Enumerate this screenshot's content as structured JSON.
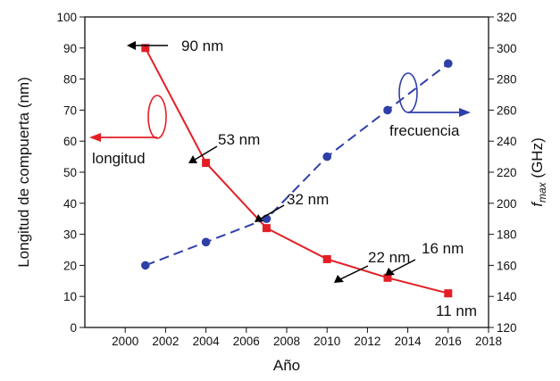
{
  "chart_data": {
    "type": "line",
    "xlabel": "Año",
    "ylabel_left": "Longitud de compuerta (nm)",
    "ylabel_right_main": "f",
    "ylabel_right_sub": "max",
    "ylabel_right_unit": " (GHz)",
    "xlim": [
      1998,
      2018
    ],
    "ylim_left": [
      0,
      100
    ],
    "ylim_right": [
      120,
      320
    ],
    "x_ticks": [
      "2000",
      "2002",
      "2004",
      "2006",
      "2008",
      "2010",
      "2012",
      "2014",
      "2016",
      "2018"
    ],
    "y_left_ticks": [
      "0",
      "10",
      "20",
      "30",
      "40",
      "50",
      "60",
      "70",
      "80",
      "90",
      "100"
    ],
    "y_right_ticks": [
      "120",
      "140",
      "160",
      "180",
      "200",
      "220",
      "240",
      "260",
      "280",
      "300",
      "320"
    ],
    "grid": false,
    "series": [
      {
        "name": "longitud",
        "axis": "left",
        "color": "#e31e24",
        "marker": "square",
        "line_style": "solid",
        "x": [
          2001,
          2004,
          2007,
          2010,
          2013,
          2016
        ],
        "y": [
          90,
          53,
          32,
          22,
          16,
          11
        ]
      },
      {
        "name": "frecuencia",
        "axis": "right",
        "color": "#2f3fa8",
        "marker": "circle",
        "line_style": "dashed",
        "x": [
          2001,
          2004,
          2007,
          2010,
          2013,
          2016
        ],
        "y": [
          160,
          175,
          190,
          230,
          260,
          290
        ]
      }
    ],
    "annotations": [
      "90 nm",
      "53 nm",
      "32 nm",
      "22 nm",
      "16 nm",
      "11 nm"
    ]
  }
}
